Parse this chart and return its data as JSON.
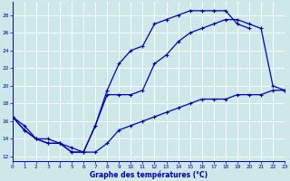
{
  "xlabel": "Graphe des températures (°C)",
  "bg_color": "#cce8e8",
  "grid_color": "#aacccc",
  "line_color": "#0000bb",
  "xlim": [
    0,
    23
  ],
  "ylim": [
    11.5,
    29.5
  ],
  "xticks": [
    0,
    1,
    2,
    3,
    4,
    5,
    6,
    7,
    8,
    9,
    10,
    11,
    12,
    13,
    14,
    15,
    16,
    17,
    18,
    19,
    20,
    21,
    22,
    23
  ],
  "yticks": [
    12,
    14,
    16,
    18,
    20,
    22,
    24,
    26,
    28
  ],
  "curve1_x": [
    0,
    1,
    2,
    3,
    4,
    5,
    6,
    7,
    8,
    9,
    10,
    11,
    12,
    13,
    14,
    15,
    16,
    17,
    18,
    19,
    20
  ],
  "curve1_y": [
    16.5,
    15.0,
    14.0,
    13.5,
    13.5,
    12.5,
    12.5,
    15.5,
    19.5,
    22.5,
    24.0,
    24.5,
    27.0,
    27.5,
    28.0,
    28.5,
    28.5,
    28.5,
    28.5,
    27.0,
    26.5
  ],
  "curve2_x": [
    0,
    1,
    2,
    3,
    4,
    5,
    6,
    7,
    8,
    9,
    10,
    11,
    12,
    13,
    14,
    15,
    16,
    17,
    18,
    19,
    20,
    21,
    22,
    23
  ],
  "curve2_y": [
    16.5,
    15.0,
    14.0,
    13.5,
    13.5,
    12.5,
    12.5,
    15.5,
    19.0,
    19.0,
    19.0,
    19.5,
    22.5,
    23.5,
    25.0,
    26.0,
    26.5,
    27.0,
    27.5,
    27.5,
    27.0,
    26.5,
    20.0,
    19.5
  ],
  "curve3_x": [
    0,
    1,
    2,
    3,
    4,
    5,
    6,
    7,
    8,
    9,
    10,
    11,
    12,
    13,
    14,
    15,
    16,
    17,
    18,
    19,
    20,
    21,
    22,
    23
  ],
  "curve3_y": [
    16.5,
    15.5,
    14.0,
    14.0,
    13.5,
    13.0,
    12.5,
    12.5,
    13.5,
    15.0,
    15.5,
    16.0,
    16.5,
    17.0,
    17.5,
    18.0,
    18.5,
    18.5,
    18.5,
    19.0,
    19.0,
    19.0,
    19.5,
    19.5
  ]
}
